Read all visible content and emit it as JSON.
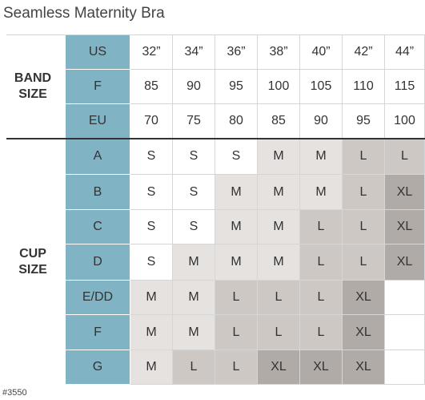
{
  "header": {
    "title": "Seamless Maternity Bra"
  },
  "band_table": {
    "label": "BAND SIZE",
    "rows": [
      {
        "name": "US",
        "cells": [
          "32”",
          "34”",
          "36”",
          "38”",
          "40”",
          "42”",
          "44”"
        ]
      },
      {
        "name": "F",
        "cells": [
          "85",
          "90",
          "95",
          "100",
          "105",
          "110",
          "115"
        ]
      },
      {
        "name": "EU",
        "cells": [
          "70",
          "75",
          "80",
          "85",
          "90",
          "95",
          "100"
        ]
      }
    ]
  },
  "cup_table": {
    "label": "CUP SIZE",
    "rows": [
      {
        "name": "A",
        "cells": [
          "S",
          "S",
          "S",
          "M",
          "M",
          "L",
          "L"
        ]
      },
      {
        "name": "B",
        "cells": [
          "S",
          "S",
          "M",
          "M",
          "M",
          "L",
          "XL"
        ]
      },
      {
        "name": "C",
        "cells": [
          "S",
          "S",
          "M",
          "M",
          "L",
          "L",
          "XL"
        ]
      },
      {
        "name": "D",
        "cells": [
          "S",
          "M",
          "M",
          "M",
          "L",
          "L",
          "XL"
        ]
      },
      {
        "name": "E/DD",
        "cells": [
          "M",
          "M",
          "L",
          "L",
          "L",
          "XL",
          null
        ]
      },
      {
        "name": "F",
        "cells": [
          "M",
          "M",
          "L",
          "L",
          "L",
          "XL",
          null
        ]
      },
      {
        "name": "G",
        "cells": [
          "M",
          "L",
          "L",
          "XL",
          "XL",
          "XL",
          null
        ]
      }
    ],
    "size_colors": {
      "S": "#ffffff",
      "M": "#e5e2e0",
      "L": "#cdc8c4",
      "XL": "#b0aba7"
    }
  },
  "footer": {
    "code": "#3550"
  }
}
